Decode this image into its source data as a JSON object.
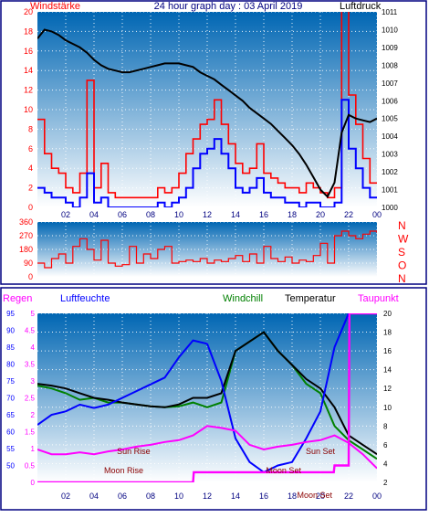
{
  "header": {
    "title": "24 hour graph day : 03 April 2019",
    "left_label": "Windstärke",
    "right_label": "Luftdruck"
  },
  "colors": {
    "frame": "#000080",
    "plot_top": "#0066b3",
    "plot_bottom": "#ffffff",
    "wind_gust": "#ff0000",
    "wind_avg": "#0000ff",
    "pressure": "#000000",
    "direction": "#ff0000",
    "rain": "#0000ff",
    "humidity": "#0000ff",
    "windchill": "#008000",
    "temperature": "#000000",
    "dewpoint": "#ff00ff",
    "annotation": "#8b0000"
  },
  "chart_data": [
    {
      "type": "line",
      "id": "wind-pressure",
      "title": "24 hour graph day : 03 April 2019",
      "ylabel_left": "Windstärke",
      "ylabel_right": "Luftdruck",
      "xlim": [
        0,
        24
      ],
      "ylim_left": [
        0,
        20
      ],
      "ylim_right": [
        1000,
        1011
      ],
      "x_ticks": [
        "02",
        "04",
        "06",
        "08",
        "10",
        "12",
        "14",
        "16",
        "18",
        "20",
        "22",
        "00"
      ],
      "y_left_ticks": [
        "0",
        "2",
        "4",
        "6",
        "8",
        "10",
        "12",
        "14",
        "16",
        "18",
        "20"
      ],
      "y_right_ticks": [
        "1000",
        "1001",
        "1002",
        "1003",
        "1004",
        "1005",
        "1006",
        "1007",
        "1008",
        "1009",
        "1010",
        "1011"
      ],
      "grid": true,
      "series": [
        {
          "name": "Luftdruck",
          "axis": "right",
          "x": [
            0,
            0.5,
            1,
            1.5,
            2,
            2.5,
            3,
            3.5,
            4,
            4.5,
            5,
            5.5,
            6,
            6.5,
            7,
            7.5,
            8,
            8.5,
            9,
            9.5,
            10,
            10.5,
            11,
            11.5,
            12,
            12.5,
            13,
            13.5,
            14,
            14.5,
            15,
            15.5,
            16,
            16.5,
            17,
            17.5,
            18,
            18.5,
            19,
            19.5,
            20,
            20.5,
            21,
            21.5,
            22,
            22.5,
            23,
            23.5,
            24
          ],
          "values": [
            1009.5,
            1010,
            1009.9,
            1009.7,
            1009.4,
            1009.2,
            1009,
            1008.7,
            1008.3,
            1008,
            1007.8,
            1007.7,
            1007.6,
            1007.6,
            1007.7,
            1007.8,
            1007.9,
            1008,
            1008.1,
            1008.1,
            1008.1,
            1008,
            1007.9,
            1007.6,
            1007.4,
            1007.2,
            1006.9,
            1006.6,
            1006.3,
            1006,
            1005.6,
            1005.3,
            1005,
            1004.7,
            1004.3,
            1003.9,
            1003.5,
            1003,
            1002.4,
            1001.7,
            1001,
            1000.6,
            1001.4,
            1004.2,
            1005.2,
            1005,
            1004.9,
            1004.8,
            1005
          ]
        },
        {
          "name": "Windböen",
          "axis": "left",
          "x": [
            0,
            0.5,
            1,
            1.5,
            2,
            2.5,
            3,
            3.5,
            4,
            4.5,
            5,
            5.5,
            6,
            6.5,
            7,
            7.5,
            8,
            8.5,
            9,
            9.5,
            10,
            10.5,
            11,
            11.5,
            12,
            12.5,
            13,
            13.5,
            14,
            14.5,
            15,
            15.5,
            16,
            16.5,
            17,
            17.5,
            18,
            18.5,
            19,
            19.5,
            20,
            20.5,
            21,
            21.5,
            22,
            22.5,
            23,
            23.5,
            24
          ],
          "values": [
            9,
            5.5,
            4,
            3.5,
            2,
            1.5,
            3.5,
            13,
            2,
            4.5,
            1.5,
            1,
            1,
            1,
            1,
            1,
            1,
            2,
            1.5,
            2,
            3.5,
            5.5,
            7,
            8.5,
            9,
            11,
            8.5,
            6.5,
            4.5,
            3.5,
            4,
            6.5,
            3.5,
            3,
            2.5,
            2,
            2,
            1.5,
            2.5,
            2,
            1.5,
            1,
            2,
            21,
            11.5,
            8.5,
            5,
            2.5,
            2.5
          ]
        },
        {
          "name": "Windmittel",
          "axis": "left",
          "x": [
            0,
            0.5,
            1,
            1.5,
            2,
            2.5,
            3,
            3.5,
            4,
            4.5,
            5,
            5.5,
            6,
            6.5,
            7,
            7.5,
            8,
            8.5,
            9,
            9.5,
            10,
            10.5,
            11,
            11.5,
            12,
            12.5,
            13,
            13.5,
            14,
            14.5,
            15,
            15.5,
            16,
            16.5,
            17,
            17.5,
            18,
            18.5,
            19,
            19.5,
            20,
            20.5,
            21,
            21.5,
            22,
            22.5,
            23,
            23.5,
            24
          ],
          "values": [
            2,
            1.5,
            1,
            1,
            0.5,
            0,
            1,
            3.5,
            0.5,
            1,
            0,
            0,
            0,
            0,
            0,
            0,
            0,
            0.5,
            0,
            0.5,
            1,
            2,
            4,
            5.5,
            6,
            7,
            5.5,
            4,
            2,
            1.5,
            2,
            3,
            1.5,
            1,
            1,
            0.5,
            0.5,
            0,
            0.5,
            0.5,
            0,
            0,
            0.5,
            11,
            6,
            4,
            2,
            1,
            1
          ]
        }
      ]
    },
    {
      "type": "line",
      "id": "wind-direction",
      "xlim": [
        0,
        24
      ],
      "ylim": [
        0,
        360
      ],
      "y_ticks": [
        "0",
        "90",
        "180",
        "270",
        "360"
      ],
      "right_labels": [
        "N",
        "W",
        "S",
        "O",
        "N"
      ],
      "grid": true,
      "series": [
        {
          "name": "Windrichtung",
          "x": [
            0,
            0.5,
            1,
            1.5,
            2,
            2.5,
            3,
            3.5,
            4,
            4.5,
            5,
            5.5,
            6,
            6.5,
            7,
            7.5,
            8,
            8.5,
            9,
            9.5,
            10,
            10.5,
            11,
            11.5,
            12,
            12.5,
            13,
            13.5,
            14,
            14.5,
            15,
            15.5,
            16,
            16.5,
            17,
            17.5,
            18,
            18.5,
            19,
            19.5,
            20,
            20.5,
            21,
            21.5,
            22,
            22.5,
            23,
            23.5,
            24
          ],
          "values": [
            90,
            60,
            120,
            150,
            90,
            200,
            250,
            180,
            110,
            240,
            90,
            70,
            80,
            200,
            90,
            150,
            120,
            180,
            200,
            90,
            100,
            110,
            100,
            120,
            90,
            110,
            100,
            120,
            140,
            100,
            150,
            90,
            200,
            120,
            100,
            130,
            90,
            110,
            100,
            140,
            220,
            90,
            270,
            300,
            270,
            250,
            280,
            300,
            290
          ]
        }
      ]
    },
    {
      "type": "line",
      "id": "temperature-humidity",
      "legend": [
        "Regen",
        "Luftfeuchte",
        "Windchill",
        "Temperatur",
        "Taupunkt"
      ],
      "xlim": [
        0,
        24
      ],
      "ylim_left": [
        45,
        95
      ],
      "ylim_right": [
        2,
        20
      ],
      "y_rain_ticks": [
        "0",
        "0.5",
        "1",
        "1.5",
        "2",
        "2.5",
        "3",
        "3.5",
        "4",
        "4.5",
        "5"
      ],
      "y_humidity_ticks": [
        "50",
        "55",
        "60",
        "65",
        "70",
        "75",
        "80",
        "85",
        "90",
        "95"
      ],
      "y_right_ticks": [
        "2",
        "4",
        "6",
        "8",
        "10",
        "12",
        "14",
        "16",
        "18",
        "20"
      ],
      "annotations": [
        {
          "text": "Sun Rise",
          "x": 6.8
        },
        {
          "text": "Moon Rise",
          "x": 6.1
        },
        {
          "text": "Sun Set",
          "x": 20
        },
        {
          "text": "Moon Set",
          "x": 17.4
        },
        {
          "text": "Moon Set",
          "x": 19.6
        }
      ],
      "series": [
        {
          "name": "Temperatur",
          "axis": "right",
          "x": [
            0,
            1,
            2,
            3,
            4,
            5,
            6,
            7,
            8,
            9,
            10,
            11,
            12,
            13,
            14,
            15,
            16,
            17,
            18,
            19,
            20,
            21,
            22,
            23,
            24
          ],
          "values": [
            12.5,
            12.3,
            12,
            11.5,
            11,
            10.8,
            10.5,
            10.3,
            10.1,
            10,
            10.3,
            11,
            11,
            11.5,
            16,
            17,
            18,
            16,
            14.5,
            13,
            12,
            10,
            7,
            6,
            5
          ]
        },
        {
          "name": "Windchill",
          "axis": "right",
          "x": [
            0,
            1,
            2,
            3,
            4,
            5,
            6,
            7,
            8,
            9,
            10,
            11,
            12,
            13,
            14,
            15,
            16,
            17,
            18,
            19,
            20,
            21,
            22,
            23,
            24
          ],
          "values": [
            12.3,
            12,
            11.5,
            10.8,
            11,
            10.5,
            10.5,
            10.3,
            10.1,
            10,
            10.1,
            10.5,
            10,
            10.5,
            16,
            17,
            18,
            16,
            14.5,
            12.5,
            11.5,
            8,
            6.5,
            5.5,
            4.5
          ]
        },
        {
          "name": "Taupunkt",
          "axis": "right",
          "x": [
            0,
            1,
            2,
            3,
            4,
            5,
            6,
            7,
            8,
            9,
            10,
            11,
            12,
            13,
            14,
            15,
            16,
            17,
            18,
            19,
            20,
            21,
            22,
            23,
            24
          ],
          "values": [
            5.5,
            5,
            5,
            5.2,
            5,
            5.3,
            5.5,
            5.8,
            6,
            6.3,
            6.5,
            7,
            8,
            7.8,
            7.5,
            6,
            5.5,
            5.8,
            6,
            6.3,
            6.5,
            7,
            6.2,
            5,
            3.5
          ]
        },
        {
          "name": "Luftfeuchte",
          "axis": "left",
          "x": [
            0,
            1,
            2,
            3,
            4,
            5,
            6,
            7,
            8,
            9,
            10,
            11,
            12,
            13,
            14,
            15,
            16,
            17,
            18,
            19,
            20,
            21,
            22,
            23,
            24
          ],
          "values": [
            62,
            65,
            66,
            68,
            67,
            68,
            70,
            72,
            74,
            76,
            82,
            87,
            86,
            75,
            58,
            51,
            48,
            50,
            51,
            58,
            66,
            85,
            95,
            96,
            96
          ]
        },
        {
          "name": "Regen",
          "axis": "rain",
          "x": [
            0,
            11,
            11.05,
            20.95,
            21,
            22,
            22.05,
            24
          ],
          "values": [
            0,
            0,
            0.3,
            0.3,
            0.5,
            0.5,
            5,
            5
          ]
        }
      ]
    }
  ]
}
